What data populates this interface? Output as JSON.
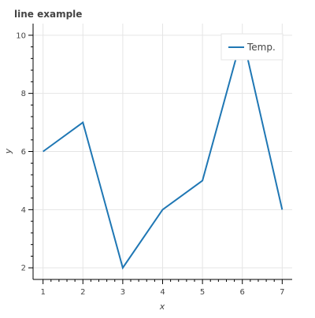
{
  "chart_data": {
    "type": "line",
    "title": "line example",
    "xlabel": "x",
    "ylabel": "y",
    "x": [
      1,
      2,
      3,
      4,
      5,
      6,
      7
    ],
    "series": [
      {
        "name": "Temp.",
        "values": [
          6,
          7,
          2,
          4,
          5,
          10,
          4
        ],
        "color": "#1f77b4"
      }
    ],
    "xlim": [
      0.75,
      7.25
    ],
    "ylim": [
      1.6,
      10.4
    ],
    "xticks": [
      1,
      2,
      3,
      4,
      5,
      6,
      7
    ],
    "yticks": [
      2,
      4,
      6,
      8,
      10
    ],
    "grid": true,
    "legend_position": "top-right"
  }
}
